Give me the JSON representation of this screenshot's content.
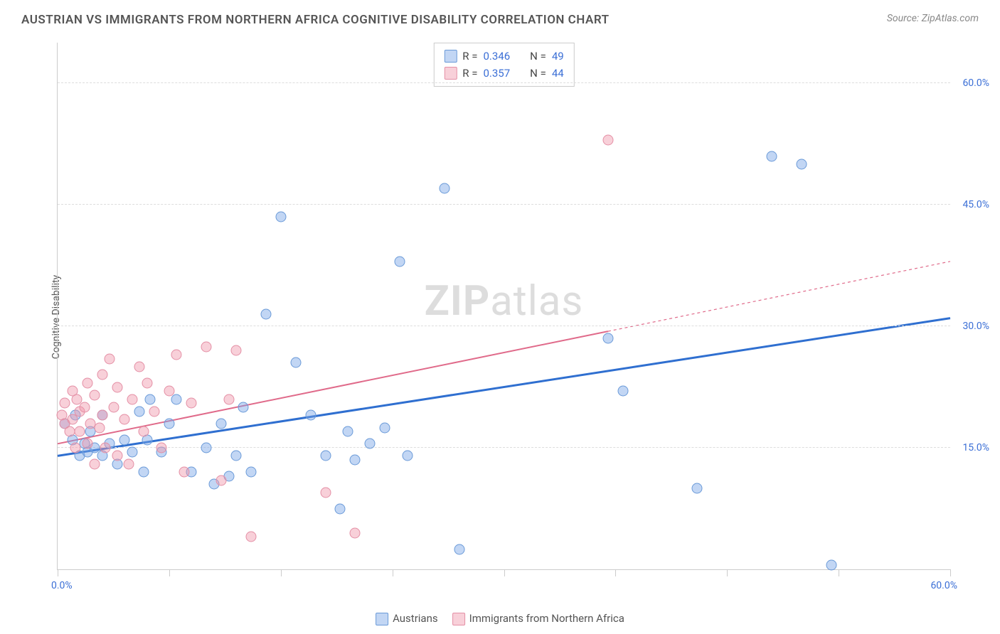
{
  "title": "AUSTRIAN VS IMMIGRANTS FROM NORTHERN AFRICA COGNITIVE DISABILITY CORRELATION CHART",
  "source_prefix": "Source: ",
  "source_name": "ZipAtlas.com",
  "y_axis_label": "Cognitive Disability",
  "watermark_bold": "ZIP",
  "watermark_rest": "atlas",
  "chart": {
    "type": "scatter",
    "xlim": [
      0,
      60
    ],
    "ylim": [
      0,
      65
    ],
    "x_tick_positions": [
      0,
      7.5,
      15,
      22.5,
      30,
      37.5,
      45,
      52.5,
      60
    ],
    "x_label_min": "0.0%",
    "x_label_max": "60.0%",
    "y_gridlines": [
      15,
      30,
      45,
      60
    ],
    "y_tick_labels": [
      "15.0%",
      "30.0%",
      "45.0%",
      "60.0%"
    ],
    "background_color": "#ffffff",
    "grid_color": "#dddddd",
    "axis_color": "#cccccc",
    "tick_label_color": "#3b6fd6",
    "point_radius": 7.5,
    "series": [
      {
        "key": "austrians",
        "label": "Austrians",
        "fill": "rgba(120,165,230,0.45)",
        "stroke": "#6a9ad8",
        "trend_color": "#2f6fd0",
        "trend_width": 3,
        "trend": {
          "x1": 0,
          "y1": 14,
          "x2": 60,
          "y2": 31,
          "dashed_from_x": null
        },
        "r_label": "R =",
        "r_value": "0.346",
        "n_label": "N =",
        "n_value": "49",
        "points": [
          [
            0.5,
            18
          ],
          [
            1,
            16
          ],
          [
            1.2,
            19
          ],
          [
            1.5,
            14
          ],
          [
            1.8,
            15.5
          ],
          [
            2,
            14.5
          ],
          [
            2.2,
            17
          ],
          [
            2.5,
            15
          ],
          [
            3,
            14
          ],
          [
            3,
            19
          ],
          [
            3.5,
            15.5
          ],
          [
            4,
            13
          ],
          [
            4.5,
            16
          ],
          [
            5,
            14.5
          ],
          [
            5.5,
            19.5
          ],
          [
            5.8,
            12
          ],
          [
            6,
            16
          ],
          [
            6.2,
            21
          ],
          [
            7,
            14.5
          ],
          [
            7.5,
            18
          ],
          [
            8,
            21
          ],
          [
            9,
            12
          ],
          [
            10,
            15
          ],
          [
            10.5,
            10.5
          ],
          [
            11,
            18
          ],
          [
            11.5,
            11.5
          ],
          [
            12,
            14
          ],
          [
            12.5,
            20
          ],
          [
            13,
            12
          ],
          [
            14,
            31.5
          ],
          [
            15,
            43.5
          ],
          [
            16,
            25.5
          ],
          [
            17,
            19
          ],
          [
            18,
            14
          ],
          [
            19,
            7.5
          ],
          [
            19.5,
            17
          ],
          [
            20,
            13.5
          ],
          [
            21,
            15.5
          ],
          [
            22,
            17.5
          ],
          [
            23,
            38
          ],
          [
            23.5,
            14
          ],
          [
            26,
            47
          ],
          [
            27,
            2.5
          ],
          [
            37,
            28.5
          ],
          [
            38,
            22
          ],
          [
            43,
            10
          ],
          [
            48,
            51
          ],
          [
            50,
            50
          ],
          [
            52,
            0.5
          ]
        ]
      },
      {
        "key": "northern_africa",
        "label": "Immigrants from Northern Africa",
        "fill": "rgba(240,150,170,0.45)",
        "stroke": "#e48fa5",
        "trend_color": "#e06a8a",
        "trend_width": 2,
        "trend": {
          "x1": 0,
          "y1": 15.5,
          "x2": 60,
          "y2": 38,
          "dashed_from_x": 37
        },
        "r_label": "R =",
        "r_value": "0.357",
        "n_label": "N =",
        "n_value": "44",
        "points": [
          [
            0.3,
            19
          ],
          [
            0.5,
            18
          ],
          [
            0.5,
            20.5
          ],
          [
            0.8,
            17
          ],
          [
            1,
            22
          ],
          [
            1,
            18.5
          ],
          [
            1.2,
            15
          ],
          [
            1.3,
            21
          ],
          [
            1.5,
            19.5
          ],
          [
            1.5,
            17
          ],
          [
            1.8,
            20
          ],
          [
            2,
            23
          ],
          [
            2,
            15.5
          ],
          [
            2.2,
            18
          ],
          [
            2.5,
            21.5
          ],
          [
            2.5,
            13
          ],
          [
            2.8,
            17.5
          ],
          [
            3,
            24
          ],
          [
            3,
            19
          ],
          [
            3.2,
            15
          ],
          [
            3.5,
            26
          ],
          [
            3.8,
            20
          ],
          [
            4,
            22.5
          ],
          [
            4,
            14
          ],
          [
            4.5,
            18.5
          ],
          [
            4.8,
            13
          ],
          [
            5,
            21
          ],
          [
            5.5,
            25
          ],
          [
            5.8,
            17
          ],
          [
            6,
            23
          ],
          [
            6.5,
            19.5
          ],
          [
            7,
            15
          ],
          [
            7.5,
            22
          ],
          [
            8,
            26.5
          ],
          [
            8.5,
            12
          ],
          [
            9,
            20.5
          ],
          [
            10,
            27.5
          ],
          [
            11,
            11
          ],
          [
            11.5,
            21
          ],
          [
            12,
            27
          ],
          [
            13,
            4
          ],
          [
            18,
            9.5
          ],
          [
            20,
            4.5
          ],
          [
            37,
            53
          ]
        ]
      }
    ]
  }
}
